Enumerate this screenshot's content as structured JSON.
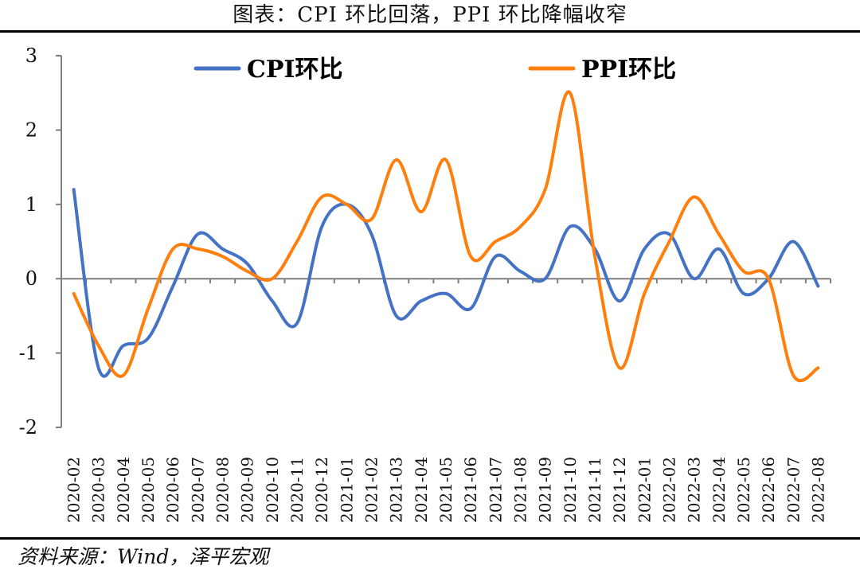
{
  "title": "图表：CPI 环比回落，PPI 环比降幅收窄",
  "source": "资料来源：Wind，泽平宏观",
  "chart_data": {
    "type": "line",
    "categories": [
      "2020-02",
      "2020-03",
      "2020-04",
      "2020-05",
      "2020-06",
      "2020-07",
      "2020-08",
      "2020-09",
      "2020-10",
      "2020-11",
      "2020-12",
      "2021-01",
      "2021-02",
      "2021-03",
      "2021-04",
      "2021-05",
      "2021-06",
      "2021-07",
      "2021-08",
      "2021-09",
      "2021-10",
      "2021-11",
      "2021-12",
      "2022-01",
      "2022-02",
      "2022-03",
      "2022-04",
      "2022-05",
      "2022-06",
      "2022-07",
      "2022-08"
    ],
    "series": [
      {
        "name": "CPI环比",
        "color": "#4472C4",
        "values": [
          1.2,
          -1.2,
          -0.9,
          -0.8,
          -0.1,
          0.6,
          0.4,
          0.2,
          -0.3,
          -0.6,
          0.7,
          1.0,
          0.6,
          -0.5,
          -0.3,
          -0.2,
          -0.4,
          0.3,
          0.1,
          0.0,
          0.7,
          0.4,
          -0.3,
          0.4,
          0.6,
          0.0,
          0.4,
          -0.2,
          0.0,
          0.5,
          -0.1
        ]
      },
      {
        "name": "PPI环比",
        "color": "#FF7F0E",
        "values": [
          -0.2,
          -0.9,
          -1.3,
          -0.4,
          0.4,
          0.4,
          0.3,
          0.1,
          0.0,
          0.5,
          1.1,
          1.0,
          0.8,
          1.6,
          0.9,
          1.6,
          0.3,
          0.5,
          0.7,
          1.2,
          2.5,
          0.3,
          -1.2,
          -0.2,
          0.5,
          1.1,
          0.6,
          0.1,
          0.0,
          -1.3,
          -1.2
        ]
      }
    ],
    "ylim": [
      -2,
      3
    ],
    "yticks": [
      -2,
      -1,
      0,
      1,
      2,
      3
    ],
    "grid": false,
    "legend_position": "top"
  }
}
